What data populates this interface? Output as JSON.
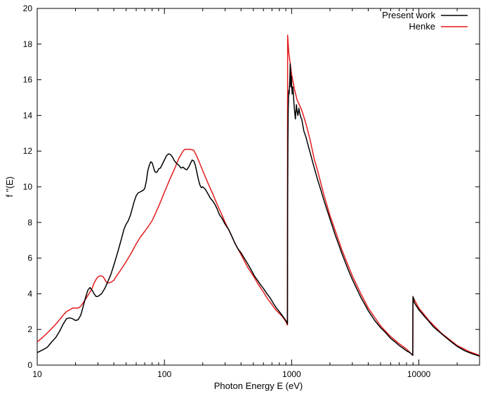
{
  "chart_data": {
    "type": "line",
    "xlabel": "Photon Energy E (eV)",
    "ylabel": "f ''(E)",
    "xscale": "log",
    "xlim": [
      10,
      30000
    ],
    "ylim": [
      0,
      20
    ],
    "grid": false,
    "legend_position": "top-right",
    "x_ticks": [
      {
        "value": 10,
        "label": "10"
      },
      {
        "value": 100,
        "label": "100"
      },
      {
        "value": 1000,
        "label": "1000"
      },
      {
        "value": 10000,
        "label": "10000"
      }
    ],
    "y_ticks": [
      {
        "value": 0,
        "label": "0"
      },
      {
        "value": 2,
        "label": "2"
      },
      {
        "value": 4,
        "label": "4"
      },
      {
        "value": 6,
        "label": "6"
      },
      {
        "value": 8,
        "label": "8"
      },
      {
        "value": 10,
        "label": "10"
      },
      {
        "value": 12,
        "label": "12"
      },
      {
        "value": 14,
        "label": "14"
      },
      {
        "value": 16,
        "label": "16"
      },
      {
        "value": 18,
        "label": "18"
      },
      {
        "value": 20,
        "label": "20"
      }
    ],
    "series": [
      {
        "name": "Present work",
        "color": "#000000",
        "points": [
          [
            10,
            0.7
          ],
          [
            11,
            0.85
          ],
          [
            12,
            1.0
          ],
          [
            13,
            1.3
          ],
          [
            14,
            1.55
          ],
          [
            15,
            1.9
          ],
          [
            16,
            2.3
          ],
          [
            17,
            2.6
          ],
          [
            18,
            2.65
          ],
          [
            19,
            2.6
          ],
          [
            20,
            2.5
          ],
          [
            21,
            2.55
          ],
          [
            22,
            2.8
          ],
          [
            23,
            3.3
          ],
          [
            24,
            3.8
          ],
          [
            25,
            4.2
          ],
          [
            26,
            4.35
          ],
          [
            27,
            4.2
          ],
          [
            28,
            4.0
          ],
          [
            29,
            3.85
          ],
          [
            30,
            3.85
          ],
          [
            32,
            4.0
          ],
          [
            34,
            4.3
          ],
          [
            36,
            4.7
          ],
          [
            38,
            5.1
          ],
          [
            40,
            5.6
          ],
          [
            42,
            6.1
          ],
          [
            44,
            6.6
          ],
          [
            46,
            7.1
          ],
          [
            48,
            7.6
          ],
          [
            50,
            7.9
          ],
          [
            52,
            8.1
          ],
          [
            54,
            8.4
          ],
          [
            56,
            8.8
          ],
          [
            58,
            9.2
          ],
          [
            60,
            9.5
          ],
          [
            62,
            9.65
          ],
          [
            64,
            9.7
          ],
          [
            66,
            9.75
          ],
          [
            68,
            9.8
          ],
          [
            70,
            9.9
          ],
          [
            72,
            10.3
          ],
          [
            74,
            10.9
          ],
          [
            76,
            11.2
          ],
          [
            78,
            11.4
          ],
          [
            80,
            11.35
          ],
          [
            82,
            11.1
          ],
          [
            84,
            10.85
          ],
          [
            86,
            10.8
          ],
          [
            88,
            10.85
          ],
          [
            90,
            11.0
          ],
          [
            93,
            11.05
          ],
          [
            96,
            11.25
          ],
          [
            100,
            11.5
          ],
          [
            104,
            11.75
          ],
          [
            108,
            11.85
          ],
          [
            112,
            11.8
          ],
          [
            116,
            11.65
          ],
          [
            120,
            11.45
          ],
          [
            125,
            11.3
          ],
          [
            130,
            11.2
          ],
          [
            135,
            11.05
          ],
          [
            140,
            11.1
          ],
          [
            145,
            11.0
          ],
          [
            150,
            10.95
          ],
          [
            155,
            11.1
          ],
          [
            160,
            11.3
          ],
          [
            165,
            11.5
          ],
          [
            170,
            11.45
          ],
          [
            175,
            11.2
          ],
          [
            180,
            10.8
          ],
          [
            185,
            10.4
          ],
          [
            190,
            10.1
          ],
          [
            195,
            9.95
          ],
          [
            200,
            10.0
          ],
          [
            210,
            9.85
          ],
          [
            220,
            9.6
          ],
          [
            230,
            9.35
          ],
          [
            240,
            9.2
          ],
          [
            250,
            9.0
          ],
          [
            260,
            8.75
          ],
          [
            270,
            8.45
          ],
          [
            285,
            8.2
          ],
          [
            300,
            7.9
          ],
          [
            320,
            7.6
          ],
          [
            340,
            7.2
          ],
          [
            360,
            6.8
          ],
          [
            380,
            6.5
          ],
          [
            400,
            6.3
          ],
          [
            420,
            6.05
          ],
          [
            450,
            5.7
          ],
          [
            480,
            5.35
          ],
          [
            510,
            5.0
          ],
          [
            540,
            4.75
          ],
          [
            570,
            4.5
          ],
          [
            600,
            4.3
          ],
          [
            640,
            4.0
          ],
          [
            680,
            3.75
          ],
          [
            720,
            3.45
          ],
          [
            760,
            3.2
          ],
          [
            800,
            3.0
          ],
          [
            840,
            2.8
          ],
          [
            880,
            2.6
          ],
          [
            910,
            2.45
          ],
          [
            925,
            2.35
          ],
          [
            928,
            2.3
          ],
          [
            930,
            9.0
          ],
          [
            935,
            12.5
          ],
          [
            940,
            14.3
          ],
          [
            945,
            15.0
          ],
          [
            950,
            15.4
          ],
          [
            955,
            15.2
          ],
          [
            960,
            15.5
          ],
          [
            965,
            15.8
          ],
          [
            970,
            16.3
          ],
          [
            975,
            16.9
          ],
          [
            980,
            16.5
          ],
          [
            985,
            15.6
          ],
          [
            990,
            15.9
          ],
          [
            995,
            16.2
          ],
          [
            1000,
            15.7
          ],
          [
            1010,
            15.2
          ],
          [
            1020,
            15.6
          ],
          [
            1030,
            15.3
          ],
          [
            1040,
            14.8
          ],
          [
            1050,
            14.4
          ],
          [
            1060,
            14.1
          ],
          [
            1070,
            13.8
          ],
          [
            1080,
            14.2
          ],
          [
            1090,
            14.6
          ],
          [
            1100,
            14.3
          ],
          [
            1120,
            14.0
          ],
          [
            1140,
            14.4
          ],
          [
            1160,
            14.1
          ],
          [
            1180,
            13.9
          ],
          [
            1200,
            13.8
          ],
          [
            1220,
            13.5
          ],
          [
            1250,
            13.1
          ],
          [
            1280,
            12.9
          ],
          [
            1300,
            12.75
          ],
          [
            1350,
            12.3
          ],
          [
            1400,
            11.9
          ],
          [
            1500,
            11.1
          ],
          [
            1600,
            10.4
          ],
          [
            1700,
            9.8
          ],
          [
            1800,
            9.2
          ],
          [
            2000,
            8.2
          ],
          [
            2200,
            7.3
          ],
          [
            2500,
            6.2
          ],
          [
            2800,
            5.3
          ],
          [
            3000,
            4.8
          ],
          [
            3500,
            3.8
          ],
          [
            4000,
            3.05
          ],
          [
            4500,
            2.5
          ],
          [
            5000,
            2.1
          ],
          [
            5500,
            1.8
          ],
          [
            6000,
            1.5
          ],
          [
            6500,
            1.3
          ],
          [
            7000,
            1.1
          ],
          [
            7500,
            0.95
          ],
          [
            8000,
            0.8
          ],
          [
            8500,
            0.7
          ],
          [
            8960,
            0.55
          ],
          [
            8980,
            3.0
          ],
          [
            9000,
            3.85
          ],
          [
            9050,
            3.6
          ],
          [
            9100,
            3.75
          ],
          [
            9200,
            3.5
          ],
          [
            9400,
            3.4
          ],
          [
            9600,
            3.3
          ],
          [
            10000,
            3.1
          ],
          [
            11000,
            2.75
          ],
          [
            12000,
            2.45
          ],
          [
            13000,
            2.15
          ],
          [
            14000,
            1.95
          ],
          [
            16000,
            1.6
          ],
          [
            18000,
            1.3
          ],
          [
            20000,
            1.05
          ],
          [
            23000,
            0.8
          ],
          [
            26000,
            0.65
          ],
          [
            30000,
            0.5
          ]
        ]
      },
      {
        "name": "Henke",
        "color": "#e31a1c",
        "points": [
          [
            10,
            1.3
          ],
          [
            11,
            1.55
          ],
          [
            12,
            1.8
          ],
          [
            13,
            2.05
          ],
          [
            14,
            2.3
          ],
          [
            15,
            2.55
          ],
          [
            16,
            2.8
          ],
          [
            17,
            3.0
          ],
          [
            18,
            3.1
          ],
          [
            19,
            3.2
          ],
          [
            20,
            3.2
          ],
          [
            21,
            3.2
          ],
          [
            22,
            3.3
          ],
          [
            23,
            3.5
          ],
          [
            24,
            3.7
          ],
          [
            25,
            3.9
          ],
          [
            26,
            4.1
          ],
          [
            27,
            4.3
          ],
          [
            28,
            4.6
          ],
          [
            29,
            4.8
          ],
          [
            30,
            4.95
          ],
          [
            31,
            5.0
          ],
          [
            32,
            5.0
          ],
          [
            33,
            4.95
          ],
          [
            34,
            4.8
          ],
          [
            35,
            4.65
          ],
          [
            36,
            4.6
          ],
          [
            38,
            4.65
          ],
          [
            40,
            4.75
          ],
          [
            42,
            5.0
          ],
          [
            45,
            5.3
          ],
          [
            48,
            5.6
          ],
          [
            50,
            5.8
          ],
          [
            55,
            6.3
          ],
          [
            60,
            6.8
          ],
          [
            65,
            7.2
          ],
          [
            70,
            7.5
          ],
          [
            75,
            7.8
          ],
          [
            80,
            8.1
          ],
          [
            85,
            8.5
          ],
          [
            90,
            8.9
          ],
          [
            95,
            9.3
          ],
          [
            100,
            9.7
          ],
          [
            110,
            10.4
          ],
          [
            120,
            11.0
          ],
          [
            130,
            11.6
          ],
          [
            140,
            12.0
          ],
          [
            145,
            12.1
          ],
          [
            150,
            12.1
          ],
          [
            160,
            12.1
          ],
          [
            170,
            12.05
          ],
          [
            180,
            11.7
          ],
          [
            190,
            11.3
          ],
          [
            200,
            10.9
          ],
          [
            220,
            10.2
          ],
          [
            240,
            9.6
          ],
          [
            260,
            9.0
          ],
          [
            280,
            8.5
          ],
          [
            300,
            8.0
          ],
          [
            330,
            7.4
          ],
          [
            360,
            6.8
          ],
          [
            400,
            6.2
          ],
          [
            450,
            5.5
          ],
          [
            500,
            5.0
          ],
          [
            550,
            4.5
          ],
          [
            600,
            4.1
          ],
          [
            650,
            3.7
          ],
          [
            700,
            3.4
          ],
          [
            750,
            3.1
          ],
          [
            800,
            2.9
          ],
          [
            850,
            2.7
          ],
          [
            900,
            2.45
          ],
          [
            925,
            2.25
          ],
          [
            930,
            18.5
          ],
          [
            950,
            17.5
          ],
          [
            1000,
            16.3
          ],
          [
            1050,
            15.5
          ],
          [
            1100,
            14.9
          ],
          [
            1200,
            14.3
          ],
          [
            1300,
            13.5
          ],
          [
            1400,
            12.6
          ],
          [
            1500,
            11.6
          ],
          [
            1600,
            10.9
          ],
          [
            1800,
            9.5
          ],
          [
            2000,
            8.4
          ],
          [
            2500,
            6.4
          ],
          [
            3000,
            5.0
          ],
          [
            3500,
            4.0
          ],
          [
            4000,
            3.2
          ],
          [
            5000,
            2.2
          ],
          [
            6000,
            1.6
          ],
          [
            7000,
            1.2
          ],
          [
            8000,
            0.9
          ],
          [
            8960,
            0.55
          ],
          [
            8980,
            3.8
          ],
          [
            9000,
            3.8
          ],
          [
            10000,
            3.2
          ],
          [
            12000,
            2.5
          ],
          [
            15000,
            1.8
          ],
          [
            20000,
            1.1
          ],
          [
            25000,
            0.75
          ],
          [
            30000,
            0.55
          ]
        ]
      }
    ]
  }
}
